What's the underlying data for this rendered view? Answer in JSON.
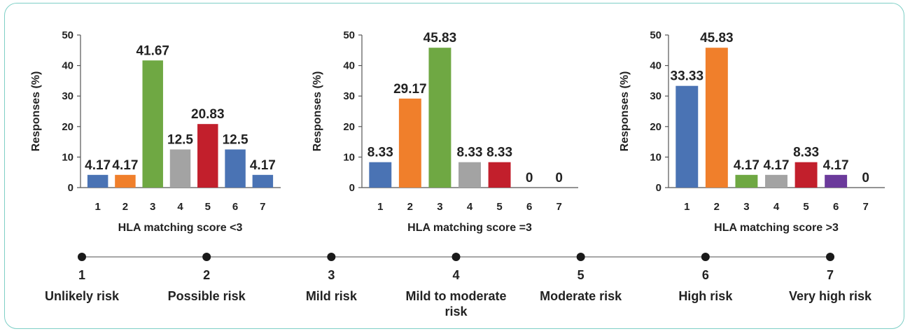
{
  "chart_data": [
    {
      "type": "bar",
      "categories": [
        "1",
        "2",
        "3",
        "4",
        "5",
        "6",
        "7"
      ],
      "values": [
        4.17,
        4.17,
        41.67,
        12.5,
        20.83,
        12.5,
        4.17
      ],
      "value_labels": [
        "4.17",
        "4.17",
        "41.67",
        "12.5",
        "20.83",
        "12.5",
        "4.17"
      ],
      "colors": [
        "#4a73b4",
        "#f07f2b",
        "#6fa843",
        "#a3a3a3",
        "#c21f2c",
        "#4a73b4",
        "#4a73b4"
      ],
      "xlabel": "HLA matching score <3",
      "ylabel": "Responses (%)",
      "ylim": [
        0,
        50
      ],
      "yticks": [
        "0",
        "10",
        "20",
        "30",
        "40",
        "50"
      ]
    },
    {
      "type": "bar",
      "categories": [
        "1",
        "2",
        "3",
        "4",
        "5",
        "6",
        "7"
      ],
      "values": [
        8.33,
        29.17,
        45.83,
        8.33,
        8.33,
        0,
        0
      ],
      "value_labels": [
        "8.33",
        "29.17",
        "45.83",
        "8.33",
        "8.33",
        "0",
        "0"
      ],
      "colors": [
        "#4a73b4",
        "#f07f2b",
        "#6fa843",
        "#a3a3a3",
        "#c21f2c",
        "#4a73b4",
        "#4a73b4"
      ],
      "xlabel": "HLA matching score =3",
      "ylabel": "Responses (%)",
      "ylim": [
        0,
        50
      ],
      "yticks": [
        "0",
        "10",
        "20",
        "30",
        "40",
        "50"
      ]
    },
    {
      "type": "bar",
      "categories": [
        "1",
        "2",
        "3",
        "4",
        "5",
        "6",
        "7"
      ],
      "values": [
        33.33,
        45.83,
        4.17,
        4.17,
        8.33,
        4.17,
        0
      ],
      "value_labels": [
        "33.33",
        "45.83",
        "4.17",
        "4.17",
        "8.33",
        "4.17",
        "0"
      ],
      "colors": [
        "#4a73b4",
        "#f07f2b",
        "#6fa843",
        "#a3a3a3",
        "#c21f2c",
        "#6b3a9b",
        "#4a73b4"
      ],
      "xlabel": "HLA matching score >3",
      "ylabel": "Responses (%)",
      "ylim": [
        0,
        50
      ],
      "yticks": [
        "0",
        "10",
        "20",
        "30",
        "40",
        "50"
      ]
    }
  ],
  "risk_scale": {
    "points": [
      {
        "number": "1",
        "label": [
          "Unlikely risk"
        ]
      },
      {
        "number": "2",
        "label": [
          "Possible risk"
        ]
      },
      {
        "number": "3",
        "label": [
          "Mild risk"
        ]
      },
      {
        "number": "4",
        "label": [
          "Mild to moderate",
          "risk"
        ]
      },
      {
        "number": "5",
        "label": [
          "Moderate risk"
        ]
      },
      {
        "number": "6",
        "label": [
          "High risk"
        ]
      },
      {
        "number": "7",
        "label": [
          "Very high risk"
        ]
      }
    ],
    "line_color": "#8a8a8a",
    "dot_color": "#1a1a1a"
  }
}
